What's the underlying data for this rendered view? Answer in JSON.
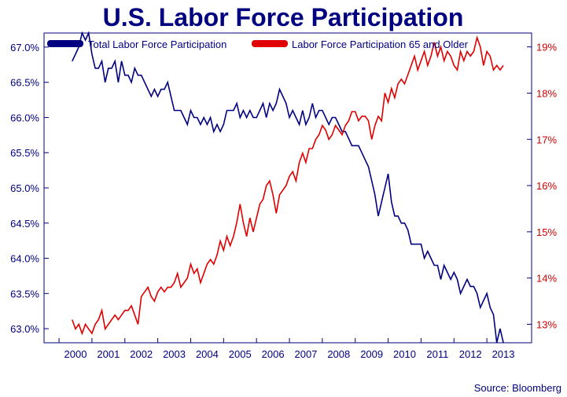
{
  "chart_data": {
    "type": "line",
    "title": "U.S. Labor Force Participation",
    "source": "Source: Bloomberg",
    "x_ticks": [
      "2000",
      "2001",
      "2002",
      "2003",
      "2004",
      "2005",
      "2006",
      "2007",
      "2008",
      "2009",
      "2010",
      "2011",
      "2012",
      "2013"
    ],
    "y_left": {
      "range": [
        62.8,
        67.2
      ],
      "ticks": [
        "63.0%",
        "63.5%",
        "64.0%",
        "64.5%",
        "65.0%",
        "65.5%",
        "66.0%",
        "66.5%",
        "67.0%"
      ],
      "tick_values": [
        63.0,
        63.5,
        64.0,
        64.5,
        65.0,
        65.5,
        66.0,
        66.5,
        67.0
      ]
    },
    "y_right": {
      "range": [
        12.6,
        19.3
      ],
      "ticks": [
        "13%",
        "14%",
        "15%",
        "16%",
        "17%",
        "18%",
        "19%"
      ],
      "tick_values": [
        13,
        14,
        15,
        16,
        17,
        18,
        19
      ]
    },
    "grid": false,
    "legend_position": "top",
    "colors": {
      "total": "#000080",
      "older": "#e00000",
      "title": "#000080",
      "axis": "#000080",
      "right_axis": "#cc0000"
    },
    "series": [
      {
        "name": "Total Labor Force Participation",
        "axis": "left",
        "x": [
          1999.9,
          2000.0,
          2000.1,
          2000.2,
          2000.3,
          2000.4,
          2000.5,
          2000.6,
          2000.7,
          2000.8,
          2000.9,
          2001.0,
          2001.1,
          2001.2,
          2001.3,
          2001.4,
          2001.5,
          2001.6,
          2001.7,
          2001.8,
          2001.9,
          2002.0,
          2002.1,
          2002.2,
          2002.3,
          2002.4,
          2002.5,
          2002.6,
          2002.7,
          2002.8,
          2002.9,
          2003.0,
          2003.1,
          2003.2,
          2003.3,
          2003.4,
          2003.5,
          2003.6,
          2003.7,
          2003.8,
          2003.9,
          2004.0,
          2004.1,
          2004.2,
          2004.3,
          2004.4,
          2004.5,
          2004.6,
          2004.7,
          2004.8,
          2004.9,
          2005.0,
          2005.1,
          2005.2,
          2005.3,
          2005.4,
          2005.5,
          2005.6,
          2005.7,
          2005.8,
          2005.9,
          2006.0,
          2006.1,
          2006.2,
          2006.3,
          2006.4,
          2006.5,
          2006.6,
          2006.7,
          2006.8,
          2006.9,
          2007.0,
          2007.1,
          2007.2,
          2007.3,
          2007.4,
          2007.5,
          2007.6,
          2007.7,
          2007.8,
          2007.9,
          2008.0,
          2008.1,
          2008.2,
          2008.3,
          2008.4,
          2008.5,
          2008.6,
          2008.7,
          2008.8,
          2008.9,
          2009.0,
          2009.1,
          2009.2,
          2009.3,
          2009.4,
          2009.5,
          2009.6,
          2009.7,
          2009.8,
          2009.9,
          2010.0,
          2010.1,
          2010.2,
          2010.3,
          2010.4,
          2010.5,
          2010.6,
          2010.7,
          2010.8,
          2010.9,
          2011.0,
          2011.1,
          2011.2,
          2011.3,
          2011.4,
          2011.5,
          2011.6,
          2011.7,
          2011.8,
          2011.9,
          2012.0,
          2012.1,
          2012.2,
          2012.3,
          2012.4,
          2012.5,
          2012.6,
          2012.7,
          2012.8,
          2012.9,
          2013.0
        ],
        "values": [
          66.8,
          66.9,
          67.0,
          67.2,
          67.1,
          67.2,
          66.9,
          66.7,
          66.7,
          66.8,
          66.5,
          66.7,
          66.7,
          66.8,
          66.5,
          66.8,
          66.6,
          66.6,
          66.5,
          66.7,
          66.6,
          66.6,
          66.5,
          66.4,
          66.3,
          66.4,
          66.3,
          66.4,
          66.4,
          66.5,
          66.3,
          66.1,
          66.1,
          66.1,
          66.0,
          65.9,
          66.1,
          66.0,
          66.0,
          65.9,
          66.0,
          65.9,
          66.0,
          65.8,
          65.9,
          65.8,
          65.9,
          66.1,
          66.1,
          66.1,
          66.2,
          66.0,
          66.1,
          66.0,
          66.1,
          66.0,
          66.0,
          66.1,
          66.2,
          66.0,
          66.2,
          66.1,
          66.2,
          66.4,
          66.3,
          66.2,
          66.0,
          66.1,
          66.0,
          65.9,
          66.1,
          65.9,
          66.0,
          66.2,
          66.0,
          66.1,
          66.1,
          66.0,
          65.9,
          66.0,
          66.0,
          65.9,
          65.8,
          65.8,
          65.7,
          65.6,
          65.6,
          65.6,
          65.5,
          65.4,
          65.3,
          65.1,
          64.9,
          64.6,
          64.8,
          65.0,
          65.2,
          64.8,
          64.6,
          64.6,
          64.5,
          64.5,
          64.4,
          64.2,
          64.2,
          64.2,
          64.2,
          64.0,
          64.1,
          64.0,
          63.9,
          63.9,
          63.7,
          63.9,
          63.8,
          63.7,
          63.8,
          63.7,
          63.5,
          63.6,
          63.7,
          63.6,
          63.6,
          63.5,
          63.3,
          63.4,
          63.5,
          63.3,
          63.2,
          62.8,
          63.0,
          62.8
        ]
      },
      {
        "name": "Labor Force Participation 65 and Older",
        "axis": "right",
        "x": [
          1999.9,
          2000.0,
          2000.1,
          2000.2,
          2000.3,
          2000.4,
          2000.5,
          2000.6,
          2000.7,
          2000.8,
          2000.9,
          2001.0,
          2001.1,
          2001.2,
          2001.3,
          2001.4,
          2001.5,
          2001.6,
          2001.7,
          2001.8,
          2001.9,
          2002.0,
          2002.1,
          2002.2,
          2002.3,
          2002.4,
          2002.5,
          2002.6,
          2002.7,
          2002.8,
          2002.9,
          2003.0,
          2003.1,
          2003.2,
          2003.3,
          2003.4,
          2003.5,
          2003.6,
          2003.7,
          2003.8,
          2003.9,
          2004.0,
          2004.1,
          2004.2,
          2004.3,
          2004.4,
          2004.5,
          2004.6,
          2004.7,
          2004.8,
          2004.9,
          2005.0,
          2005.1,
          2005.2,
          2005.3,
          2005.4,
          2005.5,
          2005.6,
          2005.7,
          2005.8,
          2005.9,
          2006.0,
          2006.1,
          2006.2,
          2006.3,
          2006.4,
          2006.5,
          2006.6,
          2006.7,
          2006.8,
          2006.9,
          2007.0,
          2007.1,
          2007.2,
          2007.3,
          2007.4,
          2007.5,
          2007.6,
          2007.7,
          2007.8,
          2007.9,
          2008.0,
          2008.1,
          2008.2,
          2008.3,
          2008.4,
          2008.5,
          2008.6,
          2008.7,
          2008.8,
          2008.9,
          2009.0,
          2009.1,
          2009.2,
          2009.3,
          2009.4,
          2009.5,
          2009.6,
          2009.7,
          2009.8,
          2009.9,
          2010.0,
          2010.1,
          2010.2,
          2010.3,
          2010.4,
          2010.5,
          2010.6,
          2010.7,
          2010.8,
          2010.9,
          2011.0,
          2011.1,
          2011.2,
          2011.3,
          2011.4,
          2011.5,
          2011.6,
          2011.7,
          2011.8,
          2011.9,
          2012.0,
          2012.1,
          2012.2,
          2012.3,
          2012.4,
          2012.5,
          2012.6,
          2012.7,
          2012.8,
          2012.9,
          2013.0
        ],
        "values": [
          13.1,
          12.9,
          13.0,
          12.8,
          13.0,
          12.9,
          12.8,
          13.0,
          13.1,
          13.3,
          12.9,
          13.0,
          13.1,
          13.2,
          13.1,
          13.2,
          13.3,
          13.3,
          13.4,
          13.2,
          13.0,
          13.6,
          13.7,
          13.8,
          13.6,
          13.5,
          13.7,
          13.8,
          13.7,
          13.8,
          13.8,
          13.9,
          14.1,
          13.8,
          13.9,
          14.0,
          14.3,
          14.1,
          14.2,
          13.9,
          14.1,
          14.3,
          14.4,
          14.3,
          14.5,
          14.8,
          14.6,
          14.9,
          14.7,
          14.9,
          15.2,
          15.6,
          15.2,
          14.9,
          15.3,
          15.0,
          15.3,
          15.6,
          15.7,
          16.0,
          16.1,
          15.8,
          15.4,
          15.8,
          15.9,
          16.0,
          16.2,
          16.3,
          16.1,
          16.5,
          16.7,
          16.5,
          16.8,
          16.8,
          17.0,
          17.1,
          17.3,
          17.2,
          17.0,
          17.1,
          17.3,
          17.2,
          17.1,
          17.3,
          17.4,
          17.6,
          17.6,
          17.4,
          17.5,
          17.5,
          17.4,
          17.0,
          17.3,
          17.5,
          17.4,
          18.0,
          17.8,
          18.1,
          17.9,
          18.2,
          18.3,
          18.2,
          18.4,
          18.6,
          18.8,
          18.5,
          18.7,
          18.9,
          18.6,
          18.8,
          19.1,
          18.8,
          19.0,
          18.7,
          18.9,
          18.8,
          18.6,
          18.5,
          18.9,
          18.7,
          18.9,
          18.8,
          18.9,
          19.2,
          19.0,
          18.6,
          18.9,
          18.8,
          18.5,
          18.6,
          18.5,
          18.6
        ]
      }
    ]
  }
}
